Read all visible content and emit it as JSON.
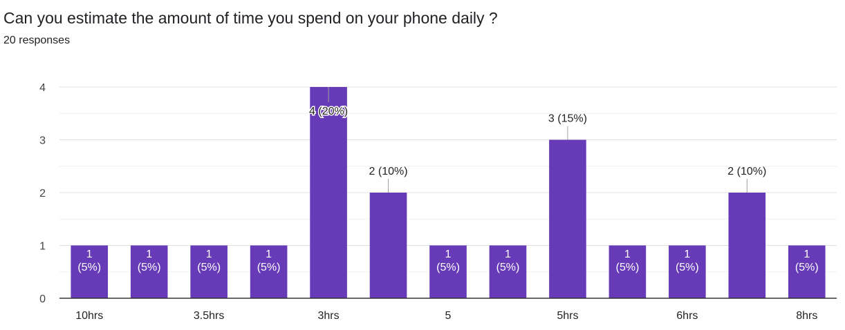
{
  "header": {
    "title": "Can you estimate the amount of time you spend on your phone daily ?",
    "responses": "20 responses"
  },
  "chart_data": {
    "type": "bar",
    "title": "Can you estimate the amount of time you spend on your phone daily ?",
    "xlabel": "",
    "ylabel": "",
    "ylim": [
      0,
      4
    ],
    "yticks": [
      0,
      1,
      2,
      3,
      4
    ],
    "grid": true,
    "bar_color": "#673ab7",
    "categories": [
      "10hrs",
      "",
      "3.5hrs",
      "",
      "3hrs",
      "",
      "5",
      "",
      "5hrs",
      "",
      "6hrs",
      "",
      "8hrs"
    ],
    "values": [
      1,
      1,
      1,
      1,
      4,
      2,
      1,
      1,
      3,
      1,
      1,
      2,
      1
    ],
    "labels": [
      "1 (5%)",
      "1 (5%)",
      "1 (5%)",
      "1 (5%)",
      "4 (20%)",
      "2 (10%)",
      "1 (5%)",
      "1 (5%)",
      "3 (15%)",
      "1 (5%)",
      "1 (5%)",
      "2 (10%)",
      "1 (5%)"
    ]
  }
}
